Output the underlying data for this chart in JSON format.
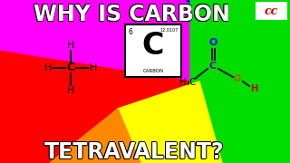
{
  "bg_colors": {
    "red": "#ff0000",
    "magenta": "#ff00ff",
    "blue": "#0000ee",
    "green": "#00dd00",
    "yellow": "#ffff00",
    "orange": "#ff8800"
  },
  "title_top": "WHY IS CARBON",
  "title_bottom": "TETRAVALENT?",
  "title_color": "#ffffff",
  "title_stroke": "#000000",
  "cc_color": "#cc0000",
  "element_number": "6",
  "element_mass": "12.0107",
  "element_symbol": "C",
  "element_name": "CARBON",
  "ch4_color": "#000000",
  "acetic_C_color": "#7700bb",
  "acetic_O_color": "#0000ff",
  "acetic_OH_O_color": "#bb5500",
  "acetic_H_color": "#cc0000",
  "acetic_H3C_color": "#000000"
}
